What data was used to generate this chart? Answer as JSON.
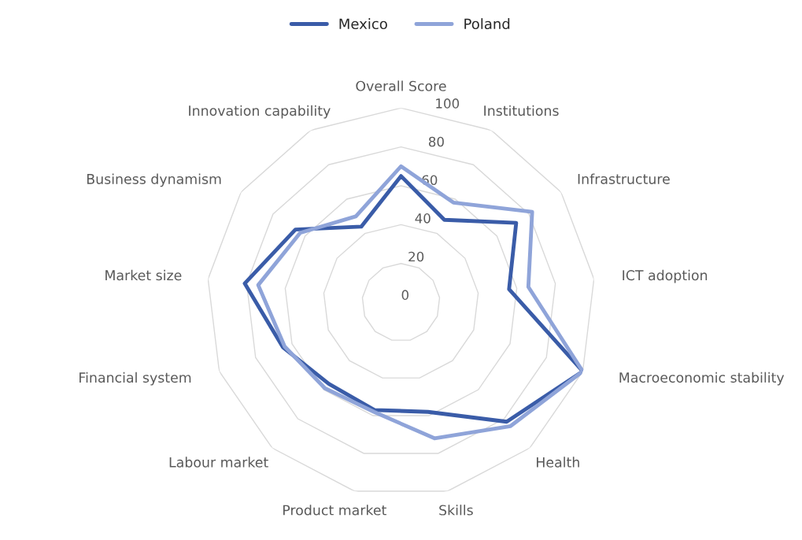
{
  "chart_data": {
    "type": "radar",
    "categories": [
      "Overall Score",
      "Institutions",
      "Infrastructure",
      "ICT adoption",
      "Macroeconomic stability",
      "Health",
      "Skills",
      "Product market",
      "Labour market",
      "Financial system",
      "Market size",
      "Business dynamism",
      "Innovation capability"
    ],
    "series": [
      {
        "name": "Mexico",
        "color": "#3a5ca8",
        "values": [
          65,
          48,
          72,
          56,
          100,
          82,
          58,
          57,
          56,
          65,
          81,
          66,
          44
        ]
      },
      {
        "name": "Poland",
        "color": "#8fa4d9",
        "values": [
          70,
          58,
          82,
          66,
          100,
          85,
          72,
          58,
          59,
          64,
          74,
          63,
          50
        ]
      }
    ],
    "ylim": [
      0,
      100
    ],
    "yticks": [
      0,
      20,
      40,
      60,
      80,
      100
    ],
    "grid": true,
    "legend": "top"
  }
}
